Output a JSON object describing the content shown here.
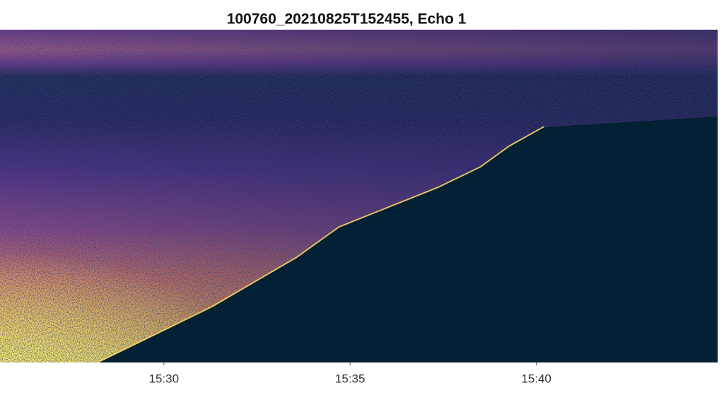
{
  "chart_data": {
    "type": "echogram",
    "title": "100760_20210825T152455, Echo 1",
    "xlim": [
      "15:25:36",
      "15:44:52"
    ],
    "xticks": [
      "15:30",
      "15:35",
      "15:40"
    ]
  }
}
